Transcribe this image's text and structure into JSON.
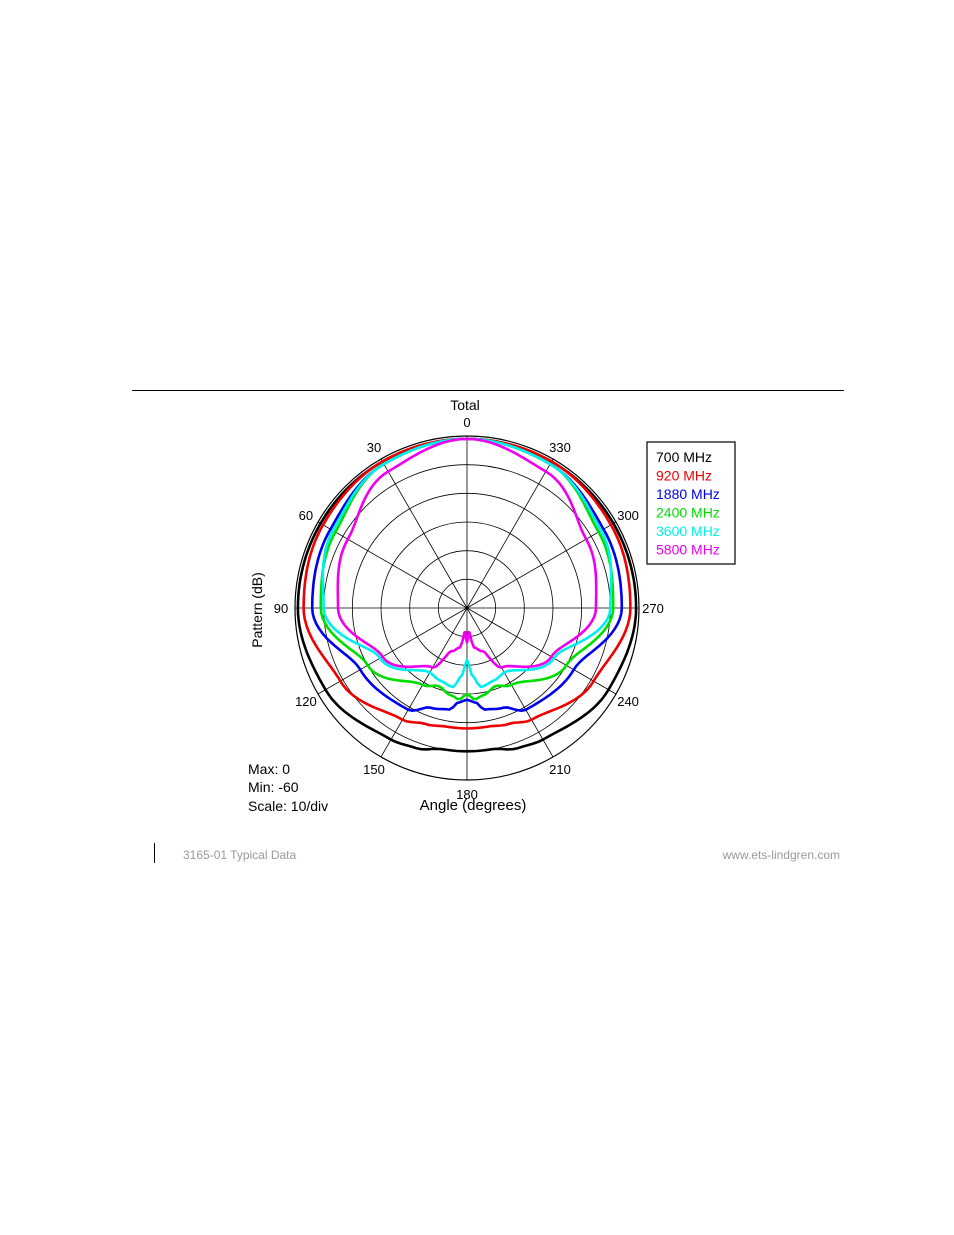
{
  "page": {
    "footer_left": "3165-01 Typical Data",
    "footer_right": "www.ets-lindgren.com"
  },
  "chart_data": {
    "type": "polar",
    "title": "Total",
    "xlabel": "Angle (degrees)",
    "ylabel": "Pattern (dB)",
    "r_range": [
      -60,
      0
    ],
    "r_scale_db_per_div": 10,
    "angle_direction": "counterclockwise from top",
    "angle_ticks": [
      0,
      30,
      60,
      90,
      120,
      150,
      180,
      210,
      240,
      270,
      300,
      330
    ],
    "stats": [
      "Max: 0",
      "Min: -60",
      "Scale: 10/div"
    ],
    "legend_position": "top-right",
    "angles": [
      0,
      30,
      60,
      90,
      120,
      150,
      160,
      170,
      175,
      180,
      185,
      190,
      200,
      210,
      240,
      270,
      300,
      330
    ],
    "series": [
      {
        "name": "700 MHz",
        "color": "#000000",
        "values": [
          -1,
          -1,
          -1,
          -1,
          -3,
          -7,
          -8,
          -10,
          -10,
          -10,
          -10,
          -10,
          -8,
          -7,
          -3,
          -1,
          -1,
          -1
        ]
      },
      {
        "name": "920 MHz",
        "color": "#ee0000",
        "values": [
          -1,
          -1,
          -2,
          -3,
          -9,
          -15,
          -17,
          -18,
          -18,
          -18,
          -18,
          -18,
          -17,
          -15,
          -9,
          -3,
          -2,
          -1
        ]
      },
      {
        "name": "1880 MHz",
        "color": "#0000ee",
        "values": [
          -1,
          -2,
          -5,
          -6,
          -17,
          -19,
          -23,
          -24,
          -27,
          -28,
          -27,
          -24,
          -23,
          -19,
          -17,
          -6,
          -5,
          -2
        ]
      },
      {
        "name": "2400 MHz",
        "color": "#00dd00",
        "values": [
          -1,
          -2,
          -7,
          -9,
          -20,
          -29,
          -31,
          -29,
          -28,
          -30,
          -28,
          -29,
          -31,
          -29,
          -20,
          -9,
          -7,
          -2
        ]
      },
      {
        "name": "3600 MHz",
        "color": "#00eeee",
        "values": [
          -1,
          -2,
          -6,
          -10,
          -25,
          -34,
          -33,
          -32,
          -36,
          -42,
          -36,
          -32,
          -33,
          -34,
          -25,
          -10,
          -6,
          -2
        ]
      },
      {
        "name": "5800 MHz",
        "color": "#ee00ee",
        "values": [
          -1,
          -5,
          -12,
          -15,
          -26,
          -36,
          -44,
          -46,
          -52,
          -48,
          -52,
          -46,
          -44,
          -36,
          -26,
          -15,
          -12,
          -5
        ]
      }
    ]
  }
}
